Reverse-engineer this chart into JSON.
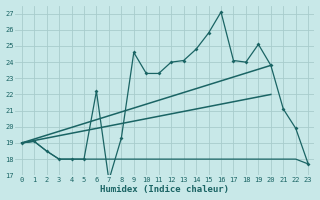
{
  "xlabel": "Humidex (Indice chaleur)",
  "bg_color": "#c8e8e8",
  "grid_color": "#a8cccc",
  "line_color": "#1a6464",
  "xlim_min": -0.5,
  "xlim_max": 23.5,
  "ylim_min": 17,
  "ylim_max": 27.5,
  "xticks": [
    0,
    1,
    2,
    3,
    4,
    5,
    6,
    7,
    8,
    9,
    10,
    11,
    12,
    13,
    14,
    15,
    16,
    17,
    18,
    19,
    20,
    21,
    22,
    23
  ],
  "yticks": [
    17,
    18,
    19,
    20,
    21,
    22,
    23,
    24,
    25,
    26,
    27
  ],
  "zigzag_x": [
    0,
    1,
    2,
    3,
    4,
    5,
    6,
    7,
    8,
    9,
    10,
    11,
    12,
    13,
    14,
    15,
    16,
    17,
    18,
    19,
    20,
    21,
    22,
    23
  ],
  "zigzag_y": [
    19.0,
    19.1,
    18.5,
    18.0,
    18.0,
    18.0,
    22.2,
    16.7,
    19.3,
    24.6,
    23.3,
    23.3,
    24.0,
    24.1,
    24.8,
    25.8,
    27.1,
    24.1,
    24.0,
    25.1,
    23.8,
    21.1,
    19.9,
    17.7
  ],
  "flat_x": [
    0,
    1,
    2,
    3,
    4,
    5,
    6,
    7,
    8,
    9,
    10,
    11,
    12,
    13,
    14,
    15,
    16,
    17,
    18,
    19,
    20,
    21,
    22,
    23
  ],
  "flat_y": [
    19.0,
    19.1,
    18.5,
    18.0,
    18.0,
    18.0,
    18.0,
    18.0,
    18.0,
    18.0,
    18.0,
    18.0,
    18.0,
    18.0,
    18.0,
    18.0,
    18.0,
    18.0,
    18.0,
    18.0,
    18.0,
    18.0,
    18.0,
    17.7
  ],
  "trend1_x": [
    0,
    20
  ],
  "trend1_y": [
    19.0,
    23.8
  ],
  "trend2_x": [
    0,
    20
  ],
  "trend2_y": [
    19.0,
    22.0
  ],
  "xlabel_fontsize": 6.5,
  "tick_fontsize": 5.0
}
